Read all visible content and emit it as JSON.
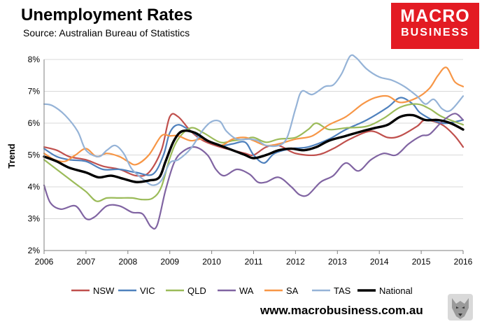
{
  "header": {
    "title": "Unemployment Rates",
    "source": "Source: Australian Bureau of Statistics"
  },
  "logo": {
    "line1": "MACRO",
    "line2": "BUSINESS",
    "color": "#e31b23"
  },
  "footer": {
    "url": "www.macrobusiness.com.au"
  },
  "chart_data": {
    "type": "line",
    "title": "Unemployment Rates",
    "xlabel": "",
    "ylabel": "Trend",
    "xlim": [
      2006,
      2016
    ],
    "ylim": [
      2,
      8
    ],
    "xticks": [
      2006,
      2007,
      2008,
      2009,
      2010,
      2011,
      2012,
      2013,
      2014,
      2015,
      2016
    ],
    "xtick_labels": [
      "2006",
      "2007",
      "2008",
      "2009",
      "2010",
      "2011",
      "2012",
      "2013",
      "2014",
      "2015",
      "2016"
    ],
    "yticks": [
      2,
      3,
      4,
      5,
      6,
      7,
      8
    ],
    "ytick_labels": [
      "2%",
      "3%",
      "4%",
      "5%",
      "6%",
      "7%",
      "8%"
    ],
    "legend_position": "bottom",
    "series": [
      {
        "name": "NSW",
        "color": "#c0504d",
        "width": 2.2,
        "x": [
          2006,
          2006.3,
          2006.6,
          2007,
          2007.4,
          2007.8,
          2008.2,
          2008.5,
          2008.8,
          2009.0,
          2009.2,
          2009.5,
          2009.8,
          2010.2,
          2010.5,
          2010.8,
          2011.0,
          2011.3,
          2011.6,
          2012.0,
          2012.5,
          2012.9,
          2013.3,
          2013.8,
          2014.2,
          2014.5,
          2014.9,
          2015.1,
          2015.5,
          2015.8,
          2016
        ],
        "y": [
          5.25,
          5.15,
          4.95,
          4.85,
          4.65,
          4.55,
          4.35,
          4.45,
          5.15,
          6.2,
          6.2,
          5.75,
          5.45,
          5.25,
          5.15,
          5.05,
          5.0,
          5.25,
          5.3,
          5.05,
          5.0,
          5.2,
          5.5,
          5.75,
          5.55,
          5.6,
          5.9,
          6.1,
          5.95,
          5.6,
          5.25
        ]
      },
      {
        "name": "VIC",
        "color": "#4f81bd",
        "width": 2.2,
        "x": [
          2006,
          2006.3,
          2006.6,
          2007,
          2007.4,
          2007.8,
          2008.2,
          2008.6,
          2008.85,
          2009.0,
          2009.2,
          2009.5,
          2009.8,
          2010.2,
          2010.5,
          2010.8,
          2011.0,
          2011.25,
          2011.5,
          2011.9,
          2012.3,
          2012.8,
          2013.2,
          2013.7,
          2014.2,
          2014.5,
          2014.8,
          2015.0,
          2015.5,
          2016
        ],
        "y": [
          5.2,
          4.95,
          4.85,
          4.8,
          4.55,
          4.55,
          4.45,
          4.4,
          5.0,
          5.7,
          5.95,
          5.75,
          5.5,
          5.3,
          5.35,
          5.4,
          5.0,
          4.75,
          5.05,
          5.2,
          5.25,
          5.5,
          5.8,
          6.1,
          6.5,
          6.8,
          6.6,
          6.3,
          6.0,
          6.1
        ]
      },
      {
        "name": "QLD",
        "color": "#9bbb59",
        "width": 2.2,
        "x": [
          2006,
          2006.3,
          2006.7,
          2007,
          2007.25,
          2007.5,
          2007.8,
          2008.1,
          2008.35,
          2008.6,
          2008.8,
          2009.0,
          2009.2,
          2009.5,
          2009.8,
          2010.2,
          2010.5,
          2010.8,
          2011.0,
          2011.3,
          2011.6,
          2012.0,
          2012.3,
          2012.5,
          2012.8,
          2013.2,
          2013.7,
          2014.1,
          2014.5,
          2014.9,
          2015.2,
          2015.5,
          2016
        ],
        "y": [
          4.85,
          4.55,
          4.15,
          3.85,
          3.55,
          3.65,
          3.65,
          3.65,
          3.6,
          3.65,
          4.0,
          4.9,
          5.5,
          5.85,
          5.7,
          5.4,
          5.45,
          5.5,
          5.55,
          5.4,
          5.5,
          5.55,
          5.8,
          6.0,
          5.8,
          5.85,
          5.9,
          6.15,
          6.5,
          6.6,
          6.45,
          6.2,
          5.95
        ]
      },
      {
        "name": "WA",
        "color": "#8064a2",
        "width": 2.2,
        "x": [
          2006,
          2006.15,
          2006.4,
          2006.75,
          2007,
          2007.2,
          2007.5,
          2007.8,
          2008.1,
          2008.35,
          2008.55,
          2008.7,
          2008.9,
          2009.1,
          2009.3,
          2009.6,
          2009.9,
          2010.1,
          2010.3,
          2010.6,
          2010.9,
          2011.1,
          2011.3,
          2011.6,
          2011.9,
          2012.1,
          2012.3,
          2012.6,
          2012.9,
          2013.2,
          2013.5,
          2013.8,
          2014.1,
          2014.4,
          2014.7,
          2015.0,
          2015.2,
          2015.5,
          2015.8,
          2016
        ],
        "y": [
          4.05,
          3.5,
          3.3,
          3.4,
          3.0,
          3.05,
          3.4,
          3.4,
          3.2,
          3.15,
          2.75,
          2.8,
          3.9,
          4.75,
          5.1,
          5.25,
          5.0,
          4.55,
          4.35,
          4.55,
          4.4,
          4.15,
          4.15,
          4.3,
          4.0,
          3.75,
          3.75,
          4.15,
          4.35,
          4.75,
          4.5,
          4.85,
          5.05,
          5.0,
          5.35,
          5.6,
          5.65,
          6.05,
          6.3,
          6.1
        ]
      },
      {
        "name": "SA",
        "color": "#f79646",
        "width": 2.2,
        "x": [
          2006,
          2006.25,
          2006.5,
          2006.75,
          2007,
          2007.25,
          2007.5,
          2007.8,
          2008.0,
          2008.2,
          2008.5,
          2008.8,
          2009.0,
          2009.2,
          2009.5,
          2009.8,
          2010.2,
          2010.5,
          2010.8,
          2011.0,
          2011.3,
          2011.6,
          2012.0,
          2012.4,
          2012.8,
          2013.2,
          2013.6,
          2013.9,
          2014.2,
          2014.5,
          2014.9,
          2015.2,
          2015.4,
          2015.6,
          2015.8,
          2016
        ],
        "y": [
          5.05,
          4.85,
          4.8,
          5.0,
          5.2,
          4.95,
          5.05,
          4.95,
          4.8,
          4.7,
          5.0,
          5.6,
          5.6,
          5.6,
          5.45,
          5.5,
          5.3,
          5.5,
          5.55,
          5.45,
          5.3,
          5.35,
          5.5,
          5.6,
          5.95,
          6.2,
          6.6,
          6.8,
          6.85,
          6.65,
          6.8,
          7.1,
          7.5,
          7.75,
          7.3,
          7.15
        ]
      },
      {
        "name": "TAS",
        "color": "#95b3d7",
        "width": 2.2,
        "x": [
          2006,
          2006.2,
          2006.5,
          2006.8,
          2007.0,
          2007.3,
          2007.5,
          2007.7,
          2007.9,
          2008.1,
          2008.4,
          2008.6,
          2008.8,
          2009.0,
          2009.2,
          2009.5,
          2009.8,
          2010.0,
          2010.2,
          2010.35,
          2010.6,
          2010.9,
          2011.1,
          2011.3,
          2011.6,
          2011.8,
          2012.0,
          2012.15,
          2012.4,
          2012.7,
          2012.9,
          2013.1,
          2013.3,
          2013.45,
          2013.7,
          2014.0,
          2014.3,
          2014.6,
          2014.9,
          2015.1,
          2015.3,
          2015.5,
          2015.7,
          2016
        ],
        "y": [
          6.6,
          6.55,
          6.25,
          5.75,
          5.15,
          4.95,
          5.15,
          5.3,
          5.05,
          4.55,
          4.2,
          4.05,
          4.2,
          4.75,
          4.85,
          5.2,
          5.8,
          6.05,
          6.05,
          5.75,
          5.5,
          5.5,
          5.45,
          5.3,
          5.3,
          5.55,
          6.45,
          7.0,
          6.9,
          7.15,
          7.2,
          7.55,
          8.1,
          8.05,
          7.7,
          7.45,
          7.35,
          7.15,
          6.85,
          6.6,
          6.75,
          6.45,
          6.4,
          6.85
        ]
      },
      {
        "name": "National",
        "color": "#000000",
        "width": 3.4,
        "x": [
          2006,
          2006.3,
          2006.6,
          2007,
          2007.3,
          2007.6,
          2007.9,
          2008.2,
          2008.5,
          2008.75,
          2008.9,
          2009.1,
          2009.3,
          2009.6,
          2009.9,
          2010.2,
          2010.5,
          2010.8,
          2011.0,
          2011.3,
          2011.6,
          2011.9,
          2012.2,
          2012.5,
          2012.8,
          2013.2,
          2013.6,
          2013.9,
          2014.2,
          2014.5,
          2014.8,
          2015.1,
          2015.4,
          2015.7,
          2016
        ],
        "y": [
          4.95,
          4.8,
          4.6,
          4.45,
          4.3,
          4.35,
          4.25,
          4.15,
          4.2,
          4.3,
          4.8,
          5.45,
          5.75,
          5.7,
          5.45,
          5.3,
          5.15,
          5.0,
          4.9,
          5.0,
          5.15,
          5.2,
          5.15,
          5.25,
          5.45,
          5.6,
          5.75,
          5.85,
          5.95,
          6.2,
          6.25,
          6.1,
          6.1,
          6.0,
          5.8
        ]
      }
    ]
  }
}
